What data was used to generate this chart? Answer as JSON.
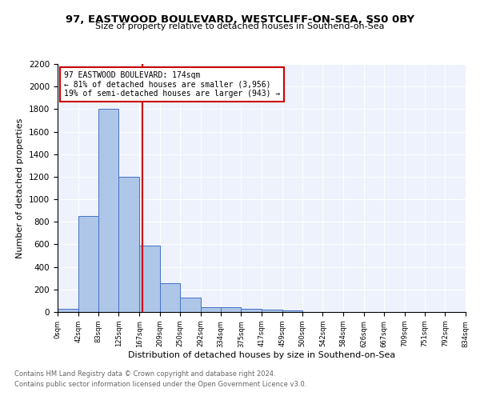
{
  "title": "97, EASTWOOD BOULEVARD, WESTCLIFF-ON-SEA, SS0 0BY",
  "subtitle": "Size of property relative to detached houses in Southend-on-Sea",
  "xlabel": "Distribution of detached houses by size in Southend-on-Sea",
  "ylabel": "Number of detached properties",
  "footnote1": "Contains HM Land Registry data © Crown copyright and database right 2024.",
  "footnote2": "Contains public sector information licensed under the Open Government Licence v3.0.",
  "annotation_line1": "97 EASTWOOD BOULEVARD: 174sqm",
  "annotation_line2": "← 81% of detached houses are smaller (3,956)",
  "annotation_line3": "19% of semi-detached houses are larger (943) →",
  "bar_edges": [
    0,
    42,
    83,
    125,
    167,
    209,
    250,
    292,
    334,
    375,
    417,
    459,
    500,
    542,
    584,
    626,
    667,
    709,
    751,
    792,
    834
  ],
  "bar_heights": [
    25,
    850,
    1800,
    1200,
    590,
    255,
    130,
    45,
    45,
    30,
    20,
    15,
    0,
    0,
    0,
    0,
    0,
    0,
    0,
    0
  ],
  "tick_labels": [
    "0sqm",
    "42sqm",
    "83sqm",
    "125sqm",
    "167sqm",
    "209sqm",
    "250sqm",
    "292sqm",
    "334sqm",
    "375sqm",
    "417sqm",
    "459sqm",
    "500sqm",
    "542sqm",
    "584sqm",
    "626sqm",
    "667sqm",
    "709sqm",
    "751sqm",
    "792sqm",
    "834sqm"
  ],
  "red_line_x": 174,
  "bar_color": "#aec6e8",
  "bar_edge_color": "#4472c4",
  "red_color": "#cc0000",
  "background_color": "#eef2fc",
  "ylim": [
    0,
    2200
  ],
  "yticks": [
    0,
    200,
    400,
    600,
    800,
    1000,
    1200,
    1400,
    1600,
    1800,
    2000,
    2200
  ]
}
